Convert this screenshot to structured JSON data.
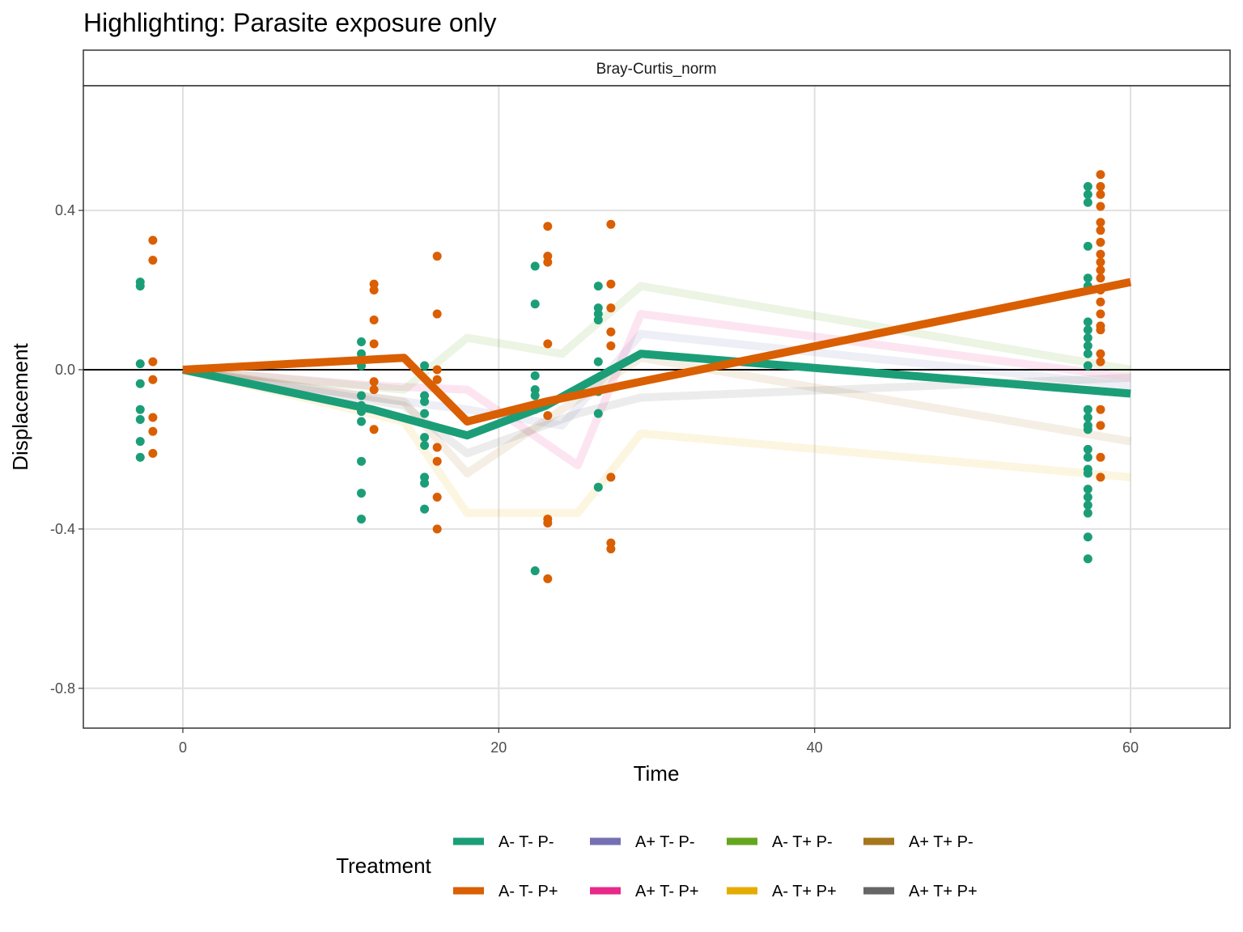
{
  "chart_data": {
    "type": "line",
    "title": "Highlighting: Parasite exposure only",
    "facet_label": "Bray-Curtis_norm",
    "x_label": "Time",
    "y_label": "Displacement",
    "legend_title": "Treatment",
    "legend_position": "bottom",
    "grid": true,
    "hline": 0,
    "xlim": [
      -6.3,
      66.3
    ],
    "ylim": [
      -0.9,
      0.713
    ],
    "xticks": [
      0,
      20,
      40,
      60
    ],
    "yticks": [
      {
        "value": 0.4,
        "label": "0.4"
      },
      {
        "value": 0.0,
        "label": "0.0"
      },
      {
        "value": -0.4,
        "label": "-0.4"
      },
      {
        "value": -0.8,
        "label": "-0.8"
      }
    ],
    "series": [
      {
        "name": "A- T- P-",
        "color": "#1b9e77",
        "highlighted": true,
        "x": [
          0,
          12,
          18,
          23,
          29,
          60
        ],
        "values": [
          0,
          -0.1,
          -0.165,
          -0.09,
          0.04,
          -0.06
        ],
        "points": {
          "x": [
            -2.7,
            -2.7,
            -2.7,
            -2.7,
            -2.7,
            -2.7,
            -2.7,
            -2.7,
            11.3,
            11.3,
            11.3,
            11.3,
            11.3,
            11.3,
            11.3,
            11.3,
            11.3,
            11.3,
            15.3,
            15.3,
            15.3,
            15.3,
            15.3,
            15.3,
            15.3,
            15.3,
            15.3,
            22.3,
            22.3,
            22.3,
            22.3,
            22.3,
            22.3,
            22.3,
            26.3,
            26.3,
            26.3,
            26.3,
            26.3,
            26.3,
            26.3,
            26.3,
            57.3,
            57.3,
            57.3,
            57.3,
            57.3,
            57.3,
            57.3,
            57.3,
            57.3,
            57.3,
            57.3,
            57.3,
            57.3,
            57.3,
            57.3,
            57.3,
            57.3,
            57.3,
            57.3,
            57.3,
            57.3,
            57.3,
            57.3,
            57.3,
            57.3,
            57.3
          ],
          "y": [
            0.22,
            0.21,
            0.015,
            -0.035,
            -0.1,
            -0.125,
            -0.18,
            -0.22,
            0.07,
            0.04,
            0.01,
            -0.065,
            -0.09,
            -0.105,
            -0.13,
            -0.23,
            -0.31,
            -0.375,
            0.01,
            -0.065,
            -0.08,
            -0.11,
            -0.17,
            -0.19,
            -0.27,
            -0.285,
            -0.35,
            0.26,
            0.165,
            -0.015,
            -0.05,
            -0.065,
            -0.1,
            -0.505,
            0.21,
            0.155,
            0.14,
            0.125,
            0.02,
            -0.055,
            -0.11,
            -0.295,
            0.46,
            0.44,
            0.42,
            0.31,
            0.23,
            0.21,
            0.12,
            0.1,
            0.08,
            0.06,
            0.04,
            0.01,
            -0.1,
            -0.12,
            -0.14,
            -0.15,
            -0.2,
            -0.22,
            -0.25,
            -0.26,
            -0.3,
            -0.32,
            -0.34,
            -0.36,
            -0.42,
            -0.475
          ]
        }
      },
      {
        "name": "A- T- P+",
        "color": "#d95f02",
        "highlighted": true,
        "x": [
          0,
          14,
          18,
          23,
          29,
          60
        ],
        "values": [
          0,
          0.03,
          -0.13,
          -0.08,
          -0.03,
          0.22
        ],
        "points": {
          "x": [
            -1.9,
            -1.9,
            -1.9,
            -1.9,
            -1.9,
            -1.9,
            -1.9,
            12.1,
            12.1,
            12.1,
            12.1,
            12.1,
            12.1,
            12.1,
            16.1,
            16.1,
            16.1,
            16.1,
            16.1,
            16.1,
            16.1,
            16.1,
            23.1,
            23.1,
            23.1,
            23.1,
            23.1,
            23.1,
            23.1,
            23.1,
            27.1,
            27.1,
            27.1,
            27.1,
            27.1,
            27.1,
            27.1,
            27.1,
            58.1,
            58.1,
            58.1,
            58.1,
            58.1,
            58.1,
            58.1,
            58.1,
            58.1,
            58.1,
            58.1,
            58.1,
            58.1,
            58.1,
            58.1,
            58.1,
            58.1,
            58.1,
            58.1,
            58.1,
            58.1,
            58.1
          ],
          "y": [
            0.325,
            0.275,
            0.02,
            -0.025,
            -0.12,
            -0.155,
            -0.21,
            0.215,
            0.2,
            0.125,
            0.065,
            -0.03,
            -0.05,
            -0.15,
            0.285,
            0.14,
            0.0,
            -0.025,
            -0.195,
            -0.23,
            -0.32,
            -0.4,
            0.36,
            0.285,
            0.27,
            0.065,
            -0.115,
            -0.375,
            -0.385,
            -0.525,
            0.365,
            0.215,
            0.155,
            0.095,
            0.06,
            -0.27,
            -0.435,
            -0.45,
            0.49,
            0.46,
            0.44,
            0.41,
            0.37,
            0.35,
            0.32,
            0.29,
            0.27,
            0.25,
            0.23,
            0.2,
            0.17,
            0.14,
            0.11,
            0.1,
            0.04,
            0.02,
            -0.1,
            -0.14,
            -0.22,
            -0.27
          ]
        }
      },
      {
        "name": "A+ T- P-",
        "color": "#7570b3",
        "highlighted": false,
        "x": [
          0,
          12,
          18,
          24,
          29,
          60
        ],
        "values": [
          0,
          -0.07,
          -0.1,
          -0.14,
          0.09,
          -0.04
        ]
      },
      {
        "name": "A+ T- P+",
        "color": "#e7298a",
        "highlighted": false,
        "x": [
          0,
          12,
          18,
          25,
          29,
          60
        ],
        "values": [
          0,
          -0.04,
          -0.05,
          -0.24,
          0.14,
          -0.02
        ]
      },
      {
        "name": "A- T+ P-",
        "color": "#66a61e",
        "highlighted": false,
        "x": [
          0,
          14,
          18,
          24,
          29,
          60
        ],
        "values": [
          0,
          -0.05,
          0.08,
          0.04,
          0.21,
          0.0
        ]
      },
      {
        "name": "A- T+ P+",
        "color": "#e6ab02",
        "highlighted": false,
        "x": [
          0,
          14,
          18,
          25,
          29,
          60
        ],
        "values": [
          0,
          -0.13,
          -0.36,
          -0.36,
          -0.16,
          -0.27
        ]
      },
      {
        "name": "A+ T+ P-",
        "color": "#a6761d",
        "highlighted": false,
        "x": [
          0,
          14,
          18,
          24,
          29,
          60
        ],
        "values": [
          0,
          -0.08,
          -0.26,
          -0.1,
          0.03,
          -0.18
        ]
      },
      {
        "name": "A+ T+ P+",
        "color": "#666666",
        "highlighted": false,
        "x": [
          0,
          14,
          18,
          25,
          29,
          60
        ],
        "values": [
          0,
          -0.09,
          -0.21,
          -0.11,
          -0.07,
          -0.02
        ]
      }
    ]
  }
}
